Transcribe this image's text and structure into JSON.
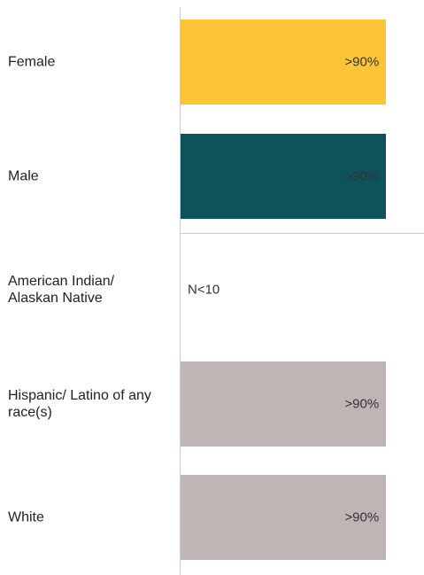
{
  "chart_data": {
    "type": "barh",
    "categories": [
      "Female",
      "Male",
      "American Indian/ Alaskan Native",
      "Hispanic/ Latino of any race(s)",
      "White"
    ],
    "values": [
      90,
      90,
      null,
      90,
      90
    ],
    "value_labels": [
      ">90%",
      ">90%",
      "N<10",
      ">90%",
      ">90%"
    ],
    "colors": [
      "#fbc537",
      "#0e535b",
      "#6db5be",
      "#c1b4b5",
      "#c1b4b5"
    ],
    "xlim": [
      0,
      100
    ]
  }
}
